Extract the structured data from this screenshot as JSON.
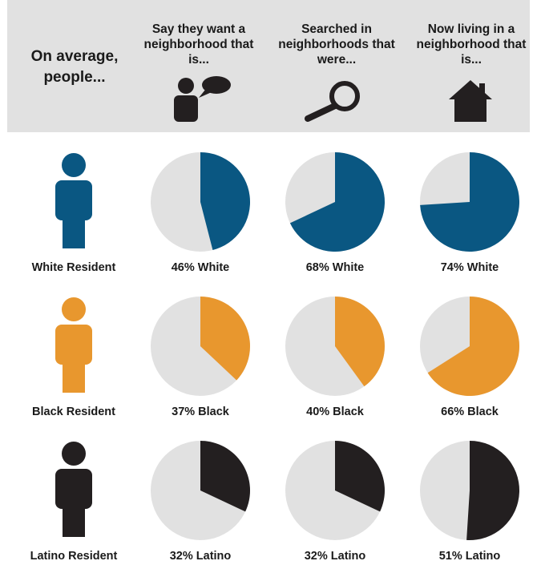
{
  "header": {
    "lead": "On average, people...",
    "columns": [
      {
        "label": "Say they want a neighborhood that is...",
        "icon": "speaking-person-icon"
      },
      {
        "label": "Searched in neighborhoods that were...",
        "icon": "magnifying-glass-icon"
      },
      {
        "label": "Now living in a neighborhood that is...",
        "icon": "house-icon"
      }
    ]
  },
  "colors": {
    "header_bg": "#e1e1e1",
    "pie_bg": "#e1e1e1",
    "white": "#0a5782",
    "black": "#e8972e",
    "latino": "#231f20"
  },
  "rows": [
    {
      "resident_label": "White Resident",
      "color": "#0a5782",
      "icon": "person-icon",
      "pies": [
        {
          "value": 46,
          "label": "46% White"
        },
        {
          "value": 68,
          "label": "68% White"
        },
        {
          "value": 74,
          "label": "74% White"
        }
      ]
    },
    {
      "resident_label": "Black Resident",
      "color": "#e8972e",
      "icon": "person-icon",
      "pies": [
        {
          "value": 37,
          "label": "37% Black"
        },
        {
          "value": 40,
          "label": "40% Black"
        },
        {
          "value": 66,
          "label": "66% Black"
        }
      ]
    },
    {
      "resident_label": "Latino Resident",
      "color": "#231f20",
      "icon": "person-icon",
      "pies": [
        {
          "value": 32,
          "label": "32% Latino"
        },
        {
          "value": 32,
          "label": "32% Latino"
        },
        {
          "value": 51,
          "label": "51% Latino"
        }
      ]
    }
  ],
  "chart_data": {
    "type": "pie",
    "columns": [
      "Say they want a neighborhood that is...",
      "Searched in neighborhoods that were...",
      "Now living in a neighborhood that is..."
    ],
    "series": [
      {
        "name": "White Resident",
        "values": [
          46,
          68,
          74
        ]
      },
      {
        "name": "Black Resident",
        "values": [
          37,
          40,
          66
        ]
      },
      {
        "name": "Latino Resident",
        "values": [
          32,
          32,
          51
        ]
      }
    ]
  }
}
